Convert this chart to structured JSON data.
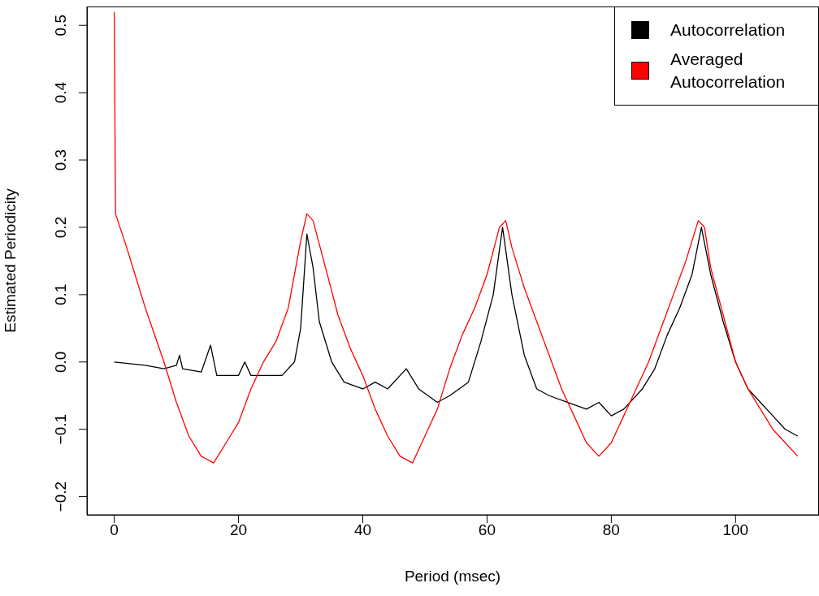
{
  "chart_data": {
    "type": "line",
    "xlabel": "Period (msec)",
    "ylabel": "Estimated Periodicity",
    "xlim": [
      -4.4,
      113.3
    ],
    "xticks": [
      0,
      20,
      40,
      60,
      80,
      100
    ],
    "ylim": [
      -0.227,
      0.528
    ],
    "yticks": [
      -0.2,
      -0.1,
      {
        "value": 0,
        "label": "0.0"
      },
      0.1,
      0.2,
      0.3,
      0.4,
      0.5
    ],
    "legend": "top right",
    "grid": false,
    "marker": "none",
    "line_style": "solid",
    "series": [
      {
        "name": "Autocorrelation",
        "color": "#000000",
        "x": [
          0,
          5,
          8,
          10,
          10.5,
          11,
          14,
          15.5,
          16.5,
          18,
          20,
          21,
          22,
          25,
          27,
          29,
          30,
          31,
          32,
          33,
          35,
          37,
          40,
          42,
          44,
          47,
          49,
          52,
          54,
          57,
          59,
          61,
          62.5,
          64,
          66,
          68,
          70,
          73,
          76,
          78,
          80,
          82,
          85,
          87,
          89,
          91,
          93,
          94.5,
          96,
          98,
          100,
          102,
          104,
          106,
          108,
          110
        ],
        "values": [
          0,
          -0.005,
          -0.01,
          -0.005,
          0.01,
          -0.01,
          -0.015,
          0.025,
          -0.02,
          -0.02,
          -0.02,
          0.0,
          -0.02,
          -0.02,
          -0.02,
          0.0,
          0.05,
          0.19,
          0.14,
          0.06,
          0.0,
          -0.03,
          -0.04,
          -0.03,
          -0.04,
          -0.01,
          -0.04,
          -0.06,
          -0.05,
          -0.03,
          0.03,
          0.1,
          0.2,
          0.1,
          0.01,
          -0.04,
          -0.05,
          -0.06,
          -0.07,
          -0.06,
          -0.08,
          -0.07,
          -0.04,
          -0.01,
          0.04,
          0.08,
          0.13,
          0.2,
          0.13,
          0.06,
          0.0,
          -0.04,
          -0.06,
          -0.08,
          -0.1,
          -0.11
        ]
      },
      {
        "name": "Averaged Autocorrelation",
        "color": "#ff0000",
        "x": [
          0,
          0.2,
          2,
          5,
          8,
          10,
          12,
          14,
          16,
          18,
          20,
          22,
          24,
          26,
          28,
          30,
          31,
          32,
          34,
          36,
          38,
          40,
          42,
          44,
          46,
          48,
          50,
          52,
          54,
          56,
          58,
          60,
          62,
          63,
          64,
          66,
          68,
          70,
          72,
          74,
          76,
          78,
          80,
          82,
          84,
          86,
          88,
          90,
          92,
          94,
          95,
          96,
          98,
          100,
          102,
          104,
          106,
          108,
          110
        ],
        "values": [
          0.52,
          0.22,
          0.17,
          0.08,
          0.0,
          -0.06,
          -0.11,
          -0.14,
          -0.15,
          -0.12,
          -0.09,
          -0.04,
          0.0,
          0.03,
          0.08,
          0.18,
          0.22,
          0.21,
          0.14,
          0.07,
          0.02,
          -0.02,
          -0.07,
          -0.11,
          -0.14,
          -0.15,
          -0.11,
          -0.07,
          -0.01,
          0.04,
          0.08,
          0.13,
          0.2,
          0.21,
          0.17,
          0.11,
          0.06,
          0.01,
          -0.04,
          -0.08,
          -0.12,
          -0.14,
          -0.12,
          -0.08,
          -0.04,
          0.0,
          0.05,
          0.1,
          0.15,
          0.21,
          0.2,
          0.14,
          0.07,
          0.0,
          -0.04,
          -0.07,
          -0.1,
          -0.12,
          -0.14
        ]
      }
    ]
  }
}
